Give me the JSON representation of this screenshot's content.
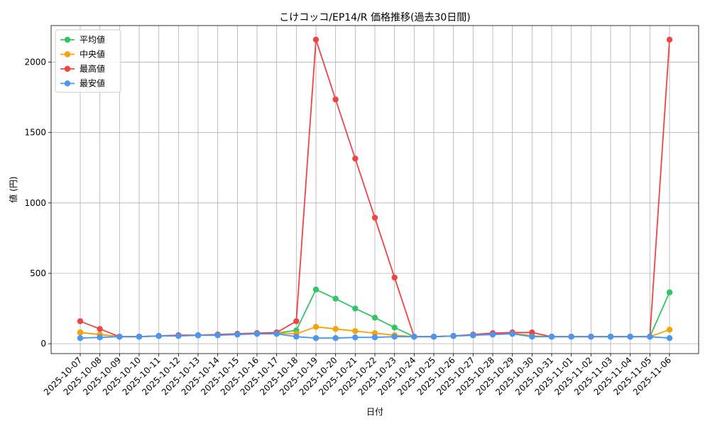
{
  "chart_data": {
    "type": "line",
    "title": "こけコッコ/EP14/R 価格推移(過去30日間)",
    "xlabel": "日付",
    "ylabel": "値 (円)",
    "ylim": [
      -70,
      2260
    ],
    "yticks": [
      0,
      500,
      1000,
      1500,
      2000
    ],
    "grid": true,
    "legend_position": "top-left",
    "categories": [
      "2025-10-07",
      "2025-10-08",
      "2025-10-09",
      "2025-10-10",
      "2025-10-11",
      "2025-10-12",
      "2025-10-13",
      "2025-10-14",
      "2025-10-15",
      "2025-10-16",
      "2025-10-17",
      "2025-10-18",
      "2025-10-19",
      "2025-10-20",
      "2025-10-21",
      "2025-10-22",
      "2025-10-23",
      "2025-10-24",
      "2025-10-25",
      "2025-10-26",
      "2025-10-27",
      "2025-10-28",
      "2025-10-29",
      "2025-10-30",
      "2025-10-31",
      "2025-11-01",
      "2025-11-02",
      "2025-11-03",
      "2025-11-04",
      "2025-11-05",
      "2025-11-06"
    ],
    "series": [
      {
        "name": "平均値",
        "color": "#33c466",
        "values": [
          80,
          65,
          50,
          50,
          55,
          60,
          60,
          65,
          70,
          75,
          75,
          95,
          385,
          320,
          250,
          185,
          115,
          50,
          50,
          55,
          60,
          70,
          75,
          55,
          50,
          50,
          50,
          50,
          50,
          50,
          365
        ]
      },
      {
        "name": "中央値",
        "color": "#f5a30a",
        "values": [
          80,
          65,
          50,
          50,
          55,
          60,
          60,
          65,
          70,
          75,
          75,
          70,
          120,
          105,
          90,
          75,
          60,
          50,
          50,
          55,
          60,
          70,
          75,
          55,
          50,
          50,
          50,
          50,
          50,
          50,
          100
        ]
      },
      {
        "name": "最高値",
        "color": "#ef4444",
        "values": [
          160,
          105,
          50,
          50,
          55,
          60,
          60,
          65,
          70,
          75,
          80,
          160,
          2160,
          1735,
          1315,
          895,
          470,
          50,
          50,
          55,
          65,
          75,
          80,
          80,
          50,
          50,
          50,
          50,
          50,
          50,
          2160
        ]
      },
      {
        "name": "最安値",
        "color": "#4b96ef",
        "values": [
          40,
          45,
          50,
          50,
          55,
          55,
          60,
          60,
          65,
          70,
          70,
          50,
          40,
          40,
          45,
          45,
          50,
          50,
          50,
          55,
          60,
          65,
          70,
          50,
          50,
          50,
          50,
          50,
          50,
          50,
          40
        ]
      }
    ]
  }
}
